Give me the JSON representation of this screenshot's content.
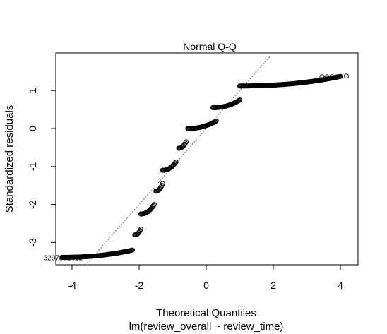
{
  "chart_data": {
    "type": "scatter",
    "title": "Normal Q-Q",
    "xlabel": "Theoretical Quantiles",
    "subtitle": "lm(review_overall ~ review_time)",
    "ylabel": "Standardized residuals",
    "xlim": [
      -4.4,
      4.4
    ],
    "ylim": [
      -3.6,
      1.9
    ],
    "x_ticks": [
      "-4",
      "-2",
      "0",
      "2",
      "4"
    ],
    "y_ticks": [
      "-3",
      "-2",
      "-1",
      "0",
      "1"
    ],
    "reference_line": {
      "slope": 1.0,
      "intercept": 0.0,
      "style": "dotted"
    },
    "point_annotation": "3297861412",
    "clusters": [
      {
        "x": [
          -4.3,
          -2.2
        ],
        "y_start": -3.39,
        "y_end": -3.2
      },
      {
        "x": [
          -2.13,
          -1.95
        ],
        "y_start": -2.8,
        "y_end": -2.65
      },
      {
        "x": [
          -1.95,
          -1.55
        ],
        "y_start": -2.25,
        "y_end": -2.0
      },
      {
        "x": [
          -1.5,
          -1.3
        ],
        "y_start": -1.65,
        "y_end": -1.45
      },
      {
        "x": [
          -1.3,
          -0.9
        ],
        "y_start": -1.1,
        "y_end": -0.88
      },
      {
        "x": [
          -0.82,
          -0.6
        ],
        "y_start": -0.52,
        "y_end": -0.35
      },
      {
        "x": [
          -0.55,
          0.3
        ],
        "y_start": 0.0,
        "y_end": 0.2
      },
      {
        "x": [
          0.2,
          1.0
        ],
        "y_start": 0.55,
        "y_end": 0.75
      },
      {
        "x": [
          1.0,
          4.0
        ],
        "y_start": 1.12,
        "y_end": 1.37
      }
    ],
    "outlier_points": [
      {
        "x": 3.45,
        "y": 1.36
      },
      {
        "x": 3.6,
        "y": 1.36
      },
      {
        "x": 3.75,
        "y": 1.36
      },
      {
        "x": 3.9,
        "y": 1.36
      },
      {
        "x": 4.18,
        "y": 1.38
      }
    ],
    "grid": false,
    "legend": "none"
  }
}
